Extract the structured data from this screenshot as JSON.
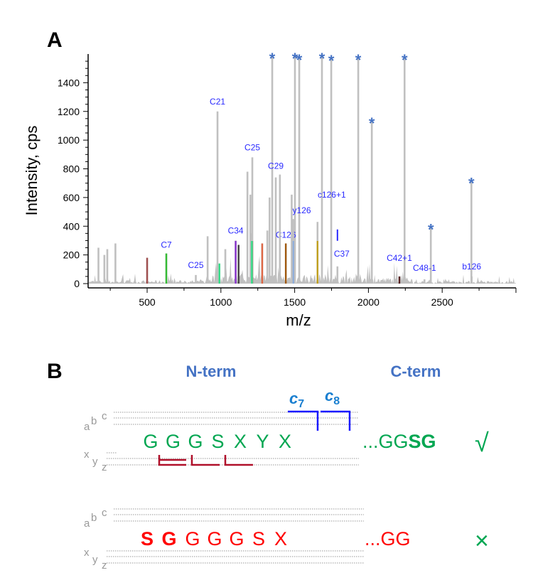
{
  "panel_a": {
    "letter": "A"
  },
  "panel_b": {
    "letter": "B",
    "n_term": "N-term",
    "c_term": "C-term",
    "c7": {
      "base": "c",
      "sub": "7"
    },
    "c8": {
      "base": "c",
      "sub": "8"
    },
    "ion_labels_top": {
      "a": "a",
      "b": "b",
      "c": "c"
    },
    "ion_labels_bottom": {
      "x": "x",
      "y": "y",
      "z": "z"
    },
    "sequence_1": {
      "residues": [
        "G",
        "G",
        "G",
        "S",
        "X",
        "Y",
        "X"
      ],
      "c_term_prefix": "...GG",
      "c_term_bold": "SG",
      "verdict": "√",
      "color": "#00a651"
    },
    "sequence_2": {
      "residues_bold": [
        "S",
        "G"
      ],
      "residues": [
        "G",
        "G",
        "G",
        "S",
        "X"
      ],
      "c_term": "...GG",
      "verdict": "×",
      "color": "#ff0000",
      "verdict_color": "#00a651"
    }
  },
  "chart_data": {
    "type": "bar",
    "title": "",
    "xlabel": "m/z",
    "ylabel": "Intensity, cps",
    "xlim": [
      100,
      3000
    ],
    "ylim": [
      0,
      1600
    ],
    "xticks": [
      500,
      1000,
      1500,
      2000,
      2500
    ],
    "yticks": [
      0,
      200,
      400,
      600,
      800,
      1000,
      1200,
      1400
    ],
    "peak_color": "#c0c0c0",
    "annotation_color": "#2a2aff",
    "star_color": "#4472c4",
    "star_symbol": "*",
    "peaks": [
      {
        "mz": 1348,
        "intensity": 1590,
        "star": true
      },
      {
        "mz": 1502,
        "intensity": 1590,
        "star": true
      },
      {
        "mz": 1531,
        "intensity": 1580,
        "star": true
      },
      {
        "mz": 1685,
        "intensity": 1590,
        "star": true
      },
      {
        "mz": 1748,
        "intensity": 1575,
        "star": true
      },
      {
        "mz": 1931,
        "intensity": 1580,
        "star": true
      },
      {
        "mz": 2023,
        "intensity": 1140,
        "star": true
      },
      {
        "mz": 2245,
        "intensity": 1580,
        "star": true
      },
      {
        "mz": 2423,
        "intensity": 400,
        "star": true
      },
      {
        "mz": 2698,
        "intensity": 720,
        "star": true
      },
      {
        "mz": 977,
        "intensity": 1200,
        "label": "C21"
      },
      {
        "mz": 1213,
        "intensity": 880,
        "label": "C25",
        "color": "#a07060"
      },
      {
        "mz": 1372,
        "intensity": 740,
        "label": "C29"
      },
      {
        "mz": 630,
        "intensity": 210,
        "label": "C7",
        "color": "#33bb33"
      },
      {
        "mz": 1100,
        "intensity": 300,
        "label": "C34",
        "color": "#8833cc"
      },
      {
        "mz": 830,
        "intensity": 60,
        "label": "C25"
      },
      {
        "mz": 1440,
        "intensity": 280,
        "label": "C126",
        "color": "#a05a10"
      },
      {
        "mz": 1490,
        "intensity": 450,
        "label": "y126",
        "color": "#88aadd"
      },
      {
        "mz": 1655,
        "intensity": 430,
        "label": "c126+1",
        "color": "#c0a020"
      },
      {
        "mz": 1790,
        "intensity": 120,
        "label": "C37"
      },
      {
        "mz": 2210,
        "intensity": 50,
        "label": "C42+1",
        "color": "#552222"
      },
      {
        "mz": 2380,
        "intensity": 30,
        "label": "C48-1"
      },
      {
        "mz": 2700,
        "intensity": 50,
        "label": "b126"
      },
      {
        "mz": 1180,
        "intensity": 780
      },
      {
        "mz": 1200,
        "intensity": 620
      },
      {
        "mz": 1330,
        "intensity": 600
      },
      {
        "mz": 1400,
        "intensity": 760
      },
      {
        "mz": 1480,
        "intensity": 620
      },
      {
        "mz": 1315,
        "intensity": 370
      },
      {
        "mz": 1280,
        "intensity": 280,
        "color": "#dd6644"
      },
      {
        "mz": 910,
        "intensity": 330
      },
      {
        "mz": 1030,
        "intensity": 240
      },
      {
        "mz": 1120,
        "intensity": 270,
        "color": "#444444"
      },
      {
        "mz": 1210,
        "intensity": 350,
        "color": "#33dd88"
      },
      {
        "mz": 500,
        "intensity": 180,
        "color": "#a05050"
      },
      {
        "mz": 990,
        "intensity": 140,
        "color": "#33dd88"
      },
      {
        "mz": 170,
        "intensity": 250
      },
      {
        "mz": 230,
        "intensity": 240
      },
      {
        "mz": 285,
        "intensity": 280
      },
      {
        "mz": 210,
        "intensity": 200
      }
    ]
  }
}
